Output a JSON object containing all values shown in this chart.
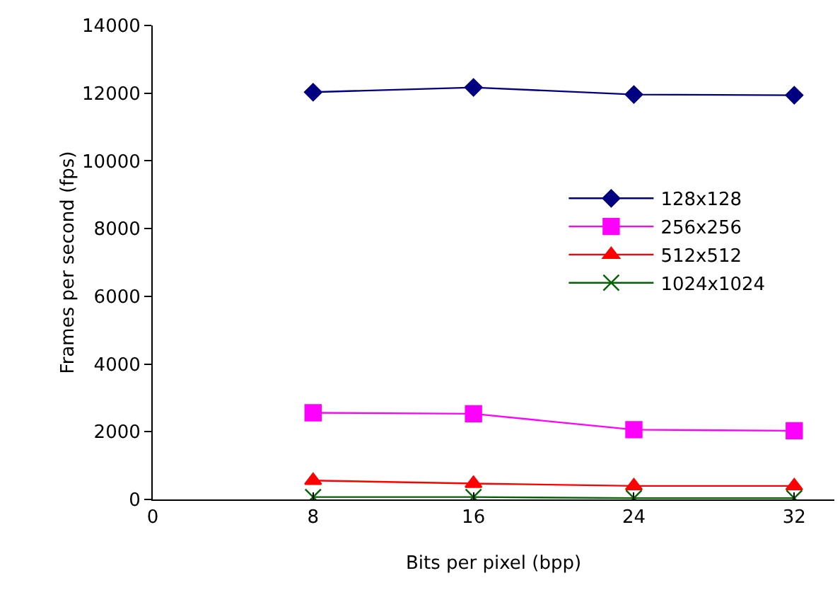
{
  "chart_data": {
    "type": "line",
    "xlabel": "Bits per pixel (bpp)",
    "ylabel": "Frames per second (fps)",
    "x": [
      8,
      16,
      24,
      32
    ],
    "series": [
      {
        "name": "128x128",
        "color": "#000080",
        "marker": "diamond",
        "values": [
          12030,
          12170,
          11960,
          11940
        ]
      },
      {
        "name": "256x256",
        "color": "#ff00ff",
        "marker": "square",
        "values": [
          2560,
          2530,
          2060,
          2030
        ]
      },
      {
        "name": "512x512",
        "color": "#ff0000",
        "marker": "triangle",
        "values": [
          560,
          470,
          400,
          400
        ]
      },
      {
        "name": "1024x1024",
        "color": "#006400",
        "marker": "cross",
        "values": [
          70,
          70,
          40,
          40
        ]
      }
    ],
    "xlim": [
      0,
      34
    ],
    "xticks": [
      0,
      8,
      16,
      24,
      32
    ],
    "ylim": [
      0,
      14000
    ],
    "yticks": [
      0,
      2000,
      4000,
      6000,
      8000,
      10000,
      12000,
      14000
    ],
    "grid": false,
    "legend": "right",
    "line_style": "solid"
  }
}
